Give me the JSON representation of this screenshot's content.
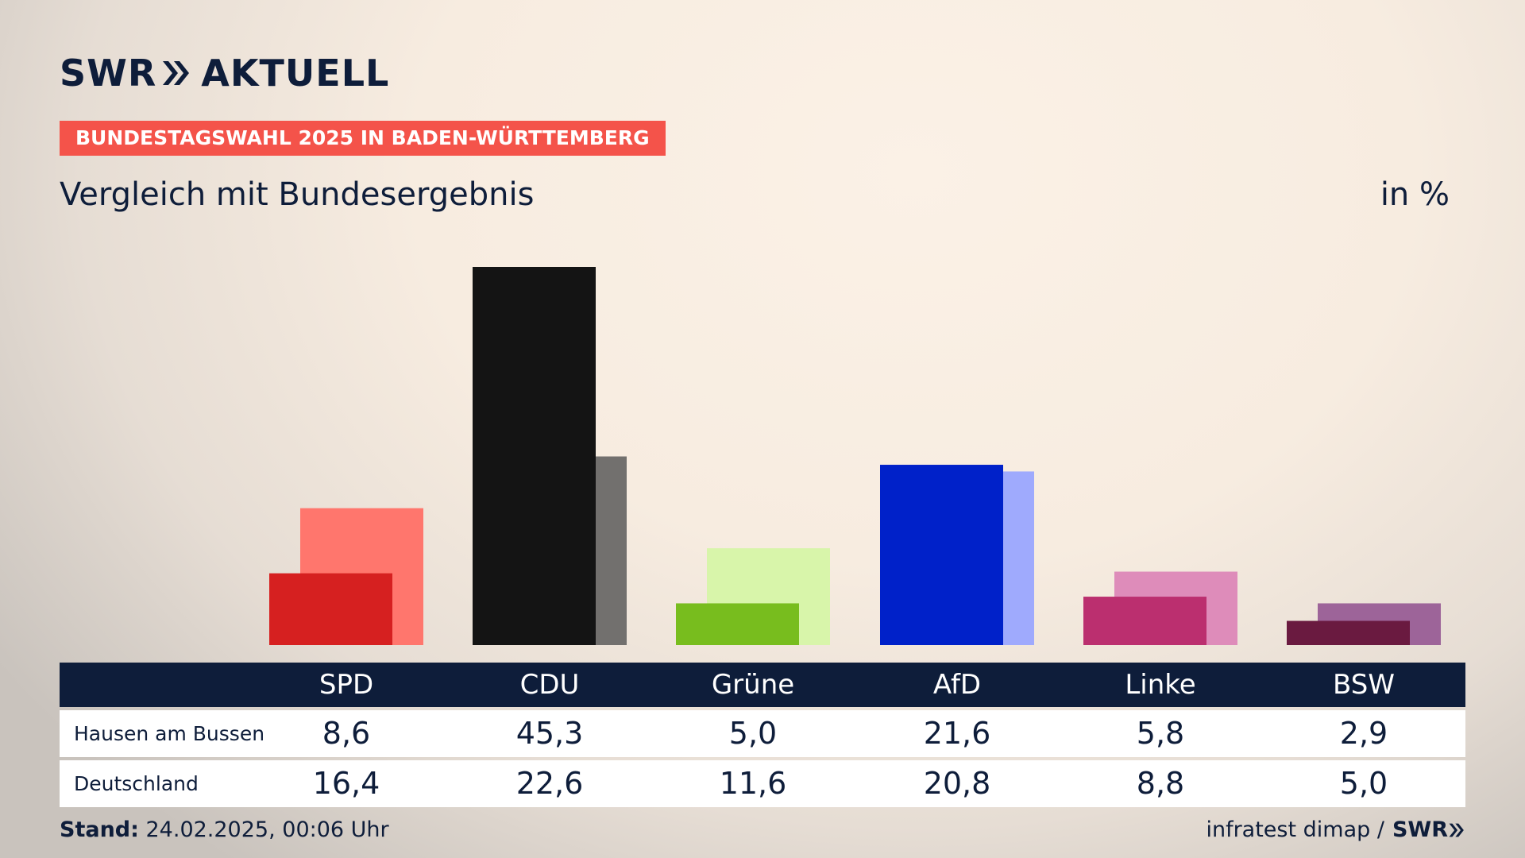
{
  "header": {
    "logo_text_left": "SWR",
    "logo_text_right": "AKTUELL",
    "tag": "BUNDESTAGSWAHL 2025 IN BADEN-WÜRTTEMBERG",
    "subtitle": "Vergleich mit Bundesergebnis",
    "unit": "in %"
  },
  "table": {
    "row_labels": [
      "Hausen am Bussen",
      "Deutschland"
    ]
  },
  "footer": {
    "stand_label": "Stand:",
    "stand_value": " 24.02.2025, 00:06 Uhr",
    "source": "infratest dimap /",
    "source_logo": "SWR"
  },
  "colors": {
    "navy": "#0e1d3a",
    "tag": "#f4534a"
  },
  "chart_data": {
    "type": "bar",
    "categories": [
      "SPD",
      "CDU",
      "Grüne",
      "AfD",
      "Linke",
      "BSW"
    ],
    "series": [
      {
        "name": "Hausen am Bussen",
        "values": [
          8.6,
          45.3,
          5.0,
          21.6,
          5.8,
          2.9
        ],
        "labels": [
          "8,6",
          "45,3",
          "5,0",
          "21,6",
          "5,8",
          "2,9"
        ],
        "colors": [
          "#d62020",
          "#141414",
          "#78bd1e",
          "#0021c9",
          "#bb2f6f",
          "#6a1a40"
        ]
      },
      {
        "name": "Deutschland",
        "values": [
          16.4,
          22.6,
          11.6,
          20.8,
          8.8,
          5.0
        ],
        "labels": [
          "16,4",
          "22,6",
          "11,6",
          "20,8",
          "8,8",
          "5,0"
        ],
        "colors": [
          "#ff766d",
          "#72706e",
          "#d8f5aa",
          "#9faafd",
          "#de8cba",
          "#9d6499"
        ]
      }
    ],
    "ylim": [
      0,
      45.3
    ]
  }
}
